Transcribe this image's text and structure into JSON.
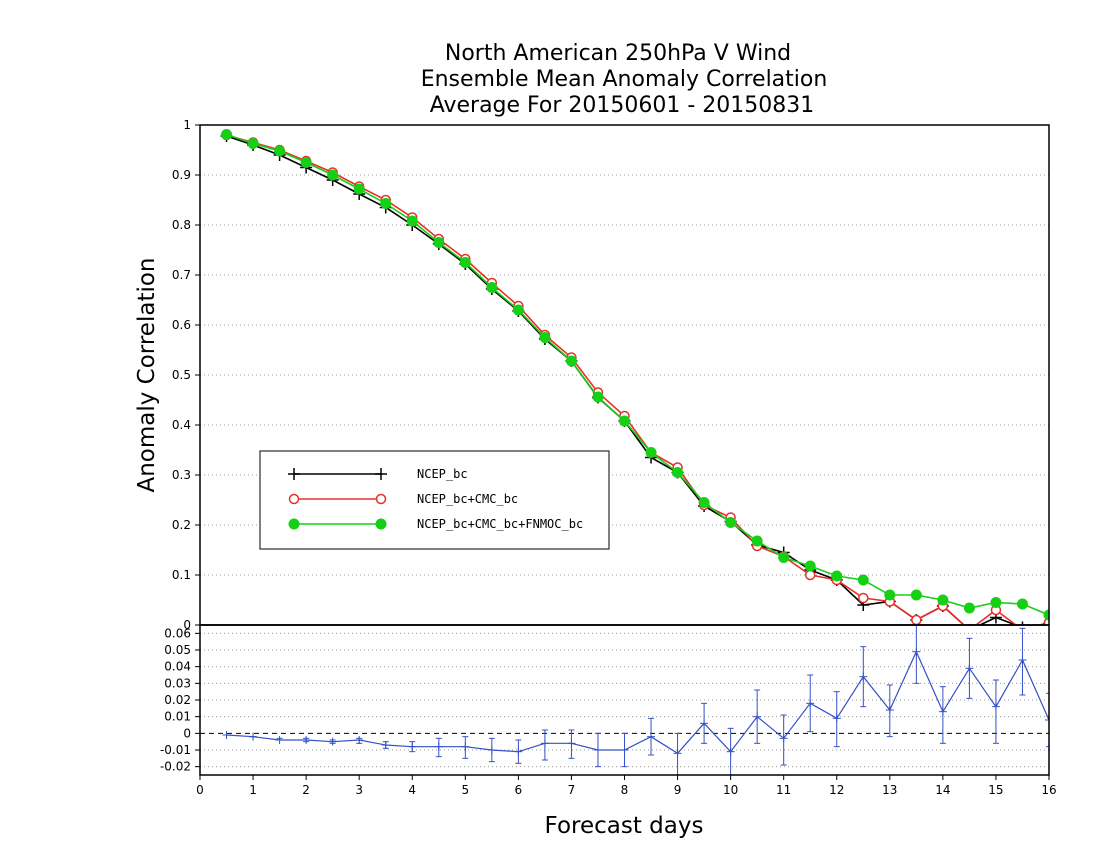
{
  "chart_data": [
    {
      "type": "line",
      "title": [
        "North American 250hPa V Wind",
        "Ensemble Mean Anomaly Correlation",
        "Average For 20150601 - 20150831"
      ],
      "xlabel": "Forecast days",
      "ylabel": "Anomaly Correlation",
      "xlim": [
        0,
        16
      ],
      "ylim": [
        0,
        1
      ],
      "x_ticks": [
        "0",
        "1",
        "2",
        "3",
        "4",
        "5",
        "6",
        "7",
        "8",
        "9",
        "10",
        "11",
        "12",
        "13",
        "14",
        "15",
        "16"
      ],
      "y_ticks": [
        "0",
        "0.1",
        "0.2",
        "0.3",
        "0.4",
        "0.5",
        "0.6",
        "0.7",
        "0.8",
        "0.9",
        "1"
      ],
      "grid": true,
      "legend_position": "left-middle",
      "x": [
        0.5,
        1,
        1.5,
        2,
        2.5,
        3,
        3.5,
        4,
        4.5,
        5,
        5.5,
        6,
        6.5,
        7,
        7.5,
        8,
        8.5,
        9,
        9.5,
        10,
        10.5,
        11,
        11.5,
        12,
        12.5,
        13,
        13.5,
        14,
        14.5,
        15,
        15.5,
        16
      ],
      "series": [
        {
          "name": "NCEP_bc",
          "color": "#000000",
          "marker": "plus",
          "values": [
            0.978,
            0.96,
            0.94,
            0.915,
            0.89,
            0.862,
            0.835,
            0.8,
            0.762,
            0.722,
            0.672,
            0.628,
            0.572,
            0.528,
            0.455,
            0.408,
            0.335,
            0.305,
            0.238,
            0.207,
            0.16,
            0.145,
            0.11,
            0.09,
            0.04,
            0.047,
            0.01,
            0.038,
            -0.01,
            0.015,
            -0.005,
            0.003
          ]
        },
        {
          "name": "NCEP_bc+CMC_bc",
          "color": "#e8302b",
          "marker": "open-circle",
          "values": [
            0.98,
            0.965,
            0.95,
            0.928,
            0.905,
            0.877,
            0.85,
            0.815,
            0.772,
            0.732,
            0.684,
            0.638,
            0.58,
            0.535,
            0.465,
            0.418,
            0.345,
            0.315,
            0.24,
            0.215,
            0.158,
            0.137,
            0.1,
            0.09,
            0.054,
            0.047,
            0.01,
            0.038,
            -0.01,
            0.03,
            -0.01,
            0.005
          ]
        },
        {
          "name": "NCEP_bc+CMC_bc+FNMOC_bc",
          "color": "#15d015",
          "marker": "filled-circle",
          "values": [
            0.981,
            0.963,
            0.948,
            0.925,
            0.9,
            0.872,
            0.843,
            0.808,
            0.765,
            0.725,
            0.675,
            0.63,
            0.575,
            0.528,
            0.456,
            0.408,
            0.345,
            0.305,
            0.245,
            0.205,
            0.168,
            0.135,
            0.118,
            0.098,
            0.09,
            0.06,
            0.06,
            0.05,
            0.034,
            0.045,
            0.042,
            0.02
          ]
        }
      ]
    },
    {
      "type": "line",
      "xlabel": "Forecast days",
      "ylabel": "",
      "xlim": [
        0,
        16
      ],
      "ylim": [
        -0.025,
        0.065
      ],
      "y_ticks": [
        "-0.02",
        "-0.01",
        "0",
        "0.01",
        "0.02",
        "0.03",
        "0.04",
        "0.05",
        "0.06"
      ],
      "grid": true,
      "x": [
        0.5,
        1,
        1.5,
        2,
        2.5,
        3,
        3.5,
        4,
        4.5,
        5,
        5.5,
        6,
        6.5,
        7,
        7.5,
        8,
        8.5,
        9,
        9.5,
        10,
        10.5,
        11,
        11.5,
        12,
        12.5,
        13,
        13.5,
        14,
        14.5,
        15,
        15.5,
        16
      ],
      "series": [
        {
          "color": "#3550c8",
          "marker": "plus",
          "error_bars": true,
          "values": [
            -0.001,
            -0.002,
            -0.004,
            -0.004,
            -0.005,
            -0.004,
            -0.007,
            -0.008,
            -0.008,
            -0.008,
            -0.01,
            -0.011,
            -0.006,
            -0.006,
            -0.01,
            -0.01,
            -0.002,
            -0.012,
            0.006,
            -0.011,
            0.01,
            -0.003,
            0.018,
            0.009,
            0.034,
            0.014,
            0.049,
            0.013,
            0.039,
            0.016,
            0.044,
            0.008
          ],
          "err_low": [
            -0.001,
            -0.002,
            -0.004,
            -0.005,
            -0.006,
            -0.006,
            -0.009,
            -0.011,
            -0.014,
            -0.015,
            -0.017,
            -0.018,
            -0.016,
            -0.015,
            -0.02,
            -0.02,
            -0.013,
            -0.025,
            -0.006,
            -0.026,
            -0.006,
            -0.019,
            0.001,
            -0.008,
            0.016,
            -0.002,
            0.03,
            -0.006,
            0.021,
            -0.006,
            0.023,
            -0.008
          ],
          "err_high": [
            -0.001,
            -0.002,
            -0.003,
            -0.003,
            -0.004,
            -0.003,
            -0.005,
            -0.005,
            -0.003,
            -0.002,
            -0.003,
            -0.004,
            0.002,
            0.002,
            0.0,
            0.0,
            0.009,
            0.0,
            0.018,
            0.003,
            0.026,
            0.011,
            0.035,
            0.025,
            0.052,
            0.029,
            0.068,
            0.028,
            0.057,
            0.032,
            0.063,
            0.024
          ]
        }
      ]
    }
  ]
}
